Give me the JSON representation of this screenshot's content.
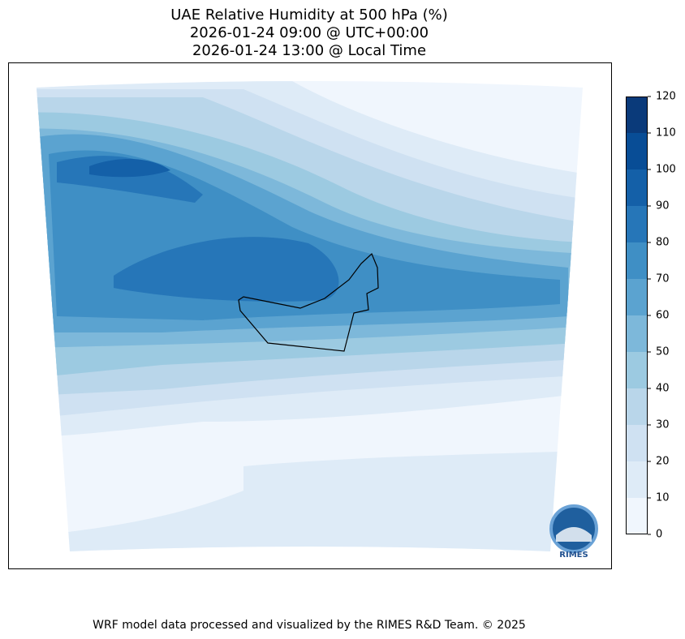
{
  "title": [
    "UAE Relative Humidity at 500 hPa (%)",
    "2026-01-24 09:00 @ UTC+00:00",
    "2026-01-24 13:00 @ Local Time"
  ],
  "colorbar": {
    "ticks": [
      0,
      10,
      20,
      30,
      40,
      50,
      60,
      70,
      80,
      90,
      100,
      110,
      120
    ],
    "colors": [
      "#f0f6fd",
      "#deebf7",
      "#cfe1f2",
      "#b9d6ea",
      "#9ccae1",
      "#7db8da",
      "#5ba3d0",
      "#3f8fc5",
      "#2676b8",
      "#1460a8",
      "#084d96",
      "#0a3a7a"
    ]
  },
  "logo": "RIMES",
  "footer": "WRF model data processed and visualized by the RIMES R&D Team. © 2025"
}
